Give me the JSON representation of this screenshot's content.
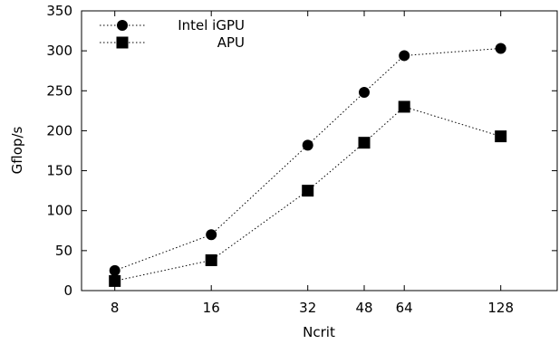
{
  "chart_data": {
    "type": "line",
    "x_scale": "log2",
    "x": [
      8,
      16,
      32,
      48,
      64,
      128
    ],
    "x_tick_labels": [
      "8",
      "16",
      "32",
      "48",
      "64",
      "128"
    ],
    "y_ticks": [
      0,
      50,
      100,
      150,
      200,
      250,
      300,
      350
    ],
    "xlabel": "Ncrit",
    "ylabel": "Gflop/s",
    "xlim": [
      6.3,
      192
    ],
    "ylim": [
      0,
      350
    ],
    "grid": false,
    "legend_position": "top-left",
    "series": [
      {
        "name": "Intel iGPU",
        "marker": "circle",
        "line_style": "dotted",
        "color": "#000000",
        "values": [
          25,
          70,
          182,
          248,
          294,
          303
        ]
      },
      {
        "name": "APU",
        "marker": "square",
        "line_style": "dotted",
        "color": "#000000",
        "values": [
          12,
          38,
          125,
          185,
          230,
          193
        ]
      }
    ]
  }
}
